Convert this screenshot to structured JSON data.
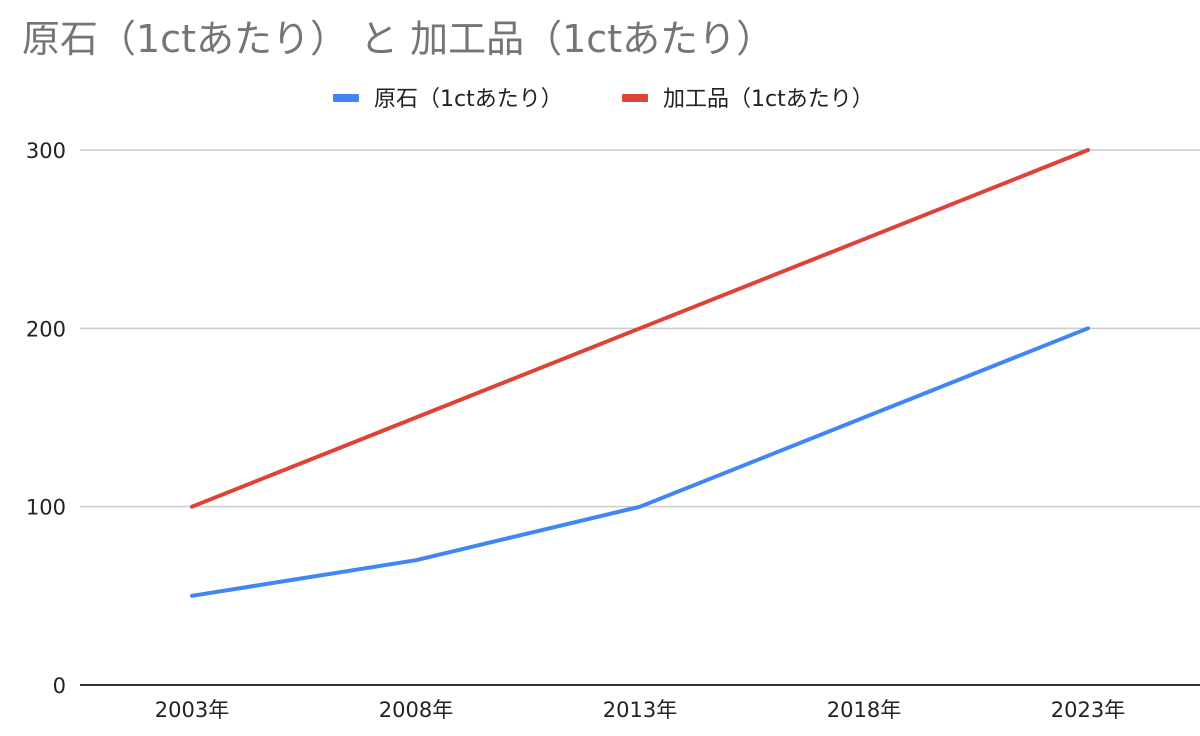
{
  "chart_data": {
    "type": "line",
    "title": "原石（1ctあたり） と 加工品（1ctあたり）",
    "categories": [
      "2003年",
      "2008年",
      "2013年",
      "2018年",
      "2023年"
    ],
    "series": [
      {
        "name": "原石（1ctあたり）",
        "color": "#4285f4",
        "values": [
          50,
          70,
          100,
          150,
          200
        ]
      },
      {
        "name": "加工品（1ctあたり）",
        "color": "#db4437",
        "values": [
          100,
          150,
          200,
          250,
          300
        ]
      }
    ],
    "yticks": [
      "0",
      "100",
      "200",
      "300"
    ],
    "ylim": [
      0,
      300
    ],
    "grid": true,
    "legend_position": "top"
  }
}
